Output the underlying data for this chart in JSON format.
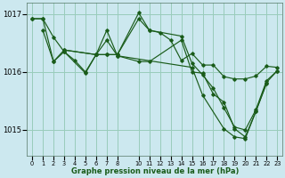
{
  "xlabel": "Graphe pression niveau de la mer (hPa)",
  "background_color": "#cce8ef",
  "grid_color": "#99ccbb",
  "line_color": "#1a5c1a",
  "ylim": [
    1014.55,
    1017.2
  ],
  "yticks": [
    1015,
    1016,
    1017
  ],
  "xlim": [
    -0.5,
    23.5
  ],
  "series": [
    {
      "x": [
        0,
        1,
        2,
        3,
        4,
        5,
        6,
        7,
        8,
        10,
        11,
        12,
        13,
        14,
        15,
        16,
        17,
        18,
        19,
        20,
        21,
        22,
        23
      ],
      "y": [
        1016.92,
        1016.92,
        1016.6,
        1016.35,
        1016.2,
        1016.0,
        1016.3,
        1016.3,
        1016.3,
        1016.92,
        1016.72,
        1016.68,
        1016.55,
        1016.2,
        1016.32,
        1016.12,
        1016.12,
        1015.92,
        1015.88,
        1015.88,
        1015.93,
        1016.1,
        1016.08
      ]
    },
    {
      "x": [
        1,
        2,
        3,
        5,
        6,
        7,
        8,
        10,
        11,
        14,
        15,
        16,
        17,
        18,
        19,
        20,
        21,
        22,
        23
      ],
      "y": [
        1016.72,
        1016.18,
        1016.35,
        1015.98,
        1016.3,
        1016.55,
        1016.28,
        1016.18,
        1016.18,
        1016.55,
        1016.0,
        1015.98,
        1015.62,
        1015.48,
        1015.02,
        1014.88,
        1015.32,
        1015.82,
        1016.02
      ]
    },
    {
      "x": [
        0,
        1,
        2,
        3,
        6,
        7,
        8,
        10,
        11,
        14,
        15,
        16,
        17,
        18,
        19,
        20,
        21,
        22,
        23
      ],
      "y": [
        1016.92,
        1016.92,
        1016.18,
        1016.38,
        1016.3,
        1016.3,
        1016.3,
        1017.02,
        1016.72,
        1016.62,
        1016.15,
        1015.95,
        1015.72,
        1015.38,
        1015.05,
        1015.0,
        1015.35,
        1015.85,
        1016.02
      ]
    },
    {
      "x": [
        3,
        6,
        7,
        8,
        15,
        16,
        18,
        19,
        20,
        21,
        22
      ],
      "y": [
        1016.38,
        1016.3,
        1016.72,
        1016.28,
        1016.08,
        1015.6,
        1015.02,
        1014.88,
        1014.85,
        1015.32,
        1015.8
      ]
    }
  ]
}
